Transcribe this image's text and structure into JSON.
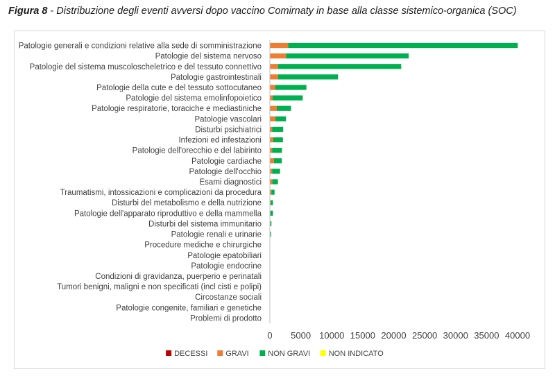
{
  "figure": {
    "label": "Figura 8",
    "separator": " - ",
    "caption": "Distribuzione degli eventi avversi dopo vaccino Comirnaty in base alla classe sistemico-organica (SOC)"
  },
  "chart_data": {
    "type": "bar",
    "orientation": "horizontal",
    "stacked": true,
    "categories": [
      "Patologie generali e condizioni relative alla sede di somministrazione",
      "Patologie del sistema nervoso",
      "Patologie del sistema muscoloscheletrico e del tessuto connettivo",
      "Patologie gastrointestinali",
      "Patologie della cute e del tessuto sottocutaneo",
      "Patologie del sistema emolinfopoietico",
      "Patologie respiratorie, toraciche e mediastiniche",
      "Patologie vascolari",
      "Disturbi psichiatrici",
      "Infezioni ed infestazioni",
      "Patologie dell'orecchio e del labirinto",
      "Patologie cardiache",
      "Patologie dell'occhio",
      "Esami diagnostici",
      "Traumatismi, intossicazioni e complicazioni da procedura",
      "Disturbi del metabolismo e della nutrizione",
      "Patologie dell'apparato riproduttivo e della mammella",
      "Disturbi del sistema immunitario",
      "Patologie renali e urinarie",
      "Procedure mediche e chirurgiche",
      "Patologie epatobiliari",
      "Patologie endocrine",
      "Condizioni di gravidanza, puerperio e perinatali",
      "Tumori benigni, maligni e non specificati (incl cisti e polipi)",
      "Circostanze sociali",
      "Patologie congenite, familiari e genetiche",
      "Problemi di prodotto"
    ],
    "series": [
      {
        "name": "DECESSI",
        "color": "#c00000",
        "values": [
          40,
          20,
          10,
          15,
          5,
          5,
          20,
          10,
          5,
          10,
          2,
          15,
          2,
          5,
          5,
          2,
          1,
          2,
          2,
          2,
          1,
          1,
          1,
          1,
          1,
          1,
          0
        ]
      },
      {
        "name": "GRAVI",
        "color": "#ed7d31",
        "values": [
          2900,
          2600,
          1300,
          1300,
          850,
          450,
          1100,
          900,
          350,
          550,
          350,
          650,
          350,
          400,
          250,
          150,
          100,
          100,
          80,
          20,
          20,
          20,
          10,
          10,
          10,
          5,
          5
        ]
      },
      {
        "name": "NON GRAVI",
        "color": "#00b050",
        "values": [
          37100,
          19800,
          19900,
          9700,
          5050,
          4850,
          2300,
          1700,
          1800,
          1550,
          1600,
          1250,
          1300,
          900,
          500,
          350,
          400,
          150,
          120,
          40,
          30,
          30,
          20,
          15,
          15,
          10,
          5
        ]
      },
      {
        "name": "NON INDICATO",
        "color": "#ffff00",
        "values": [
          10,
          5,
          5,
          5,
          5,
          5,
          5,
          5,
          5,
          5,
          5,
          5,
          5,
          5,
          2,
          2,
          2,
          1,
          1,
          0,
          0,
          0,
          0,
          0,
          0,
          0,
          0
        ]
      }
    ],
    "xlim": [
      0,
      40000
    ],
    "xticks": [
      0,
      5000,
      10000,
      15000,
      20000,
      25000,
      30000,
      35000,
      40000
    ],
    "xtick_labels": [
      "0",
      "5000",
      "10000",
      "15000",
      "20000",
      "25000",
      "30000",
      "35000",
      "40000"
    ],
    "grid": false,
    "legend_position": "bottom"
  }
}
